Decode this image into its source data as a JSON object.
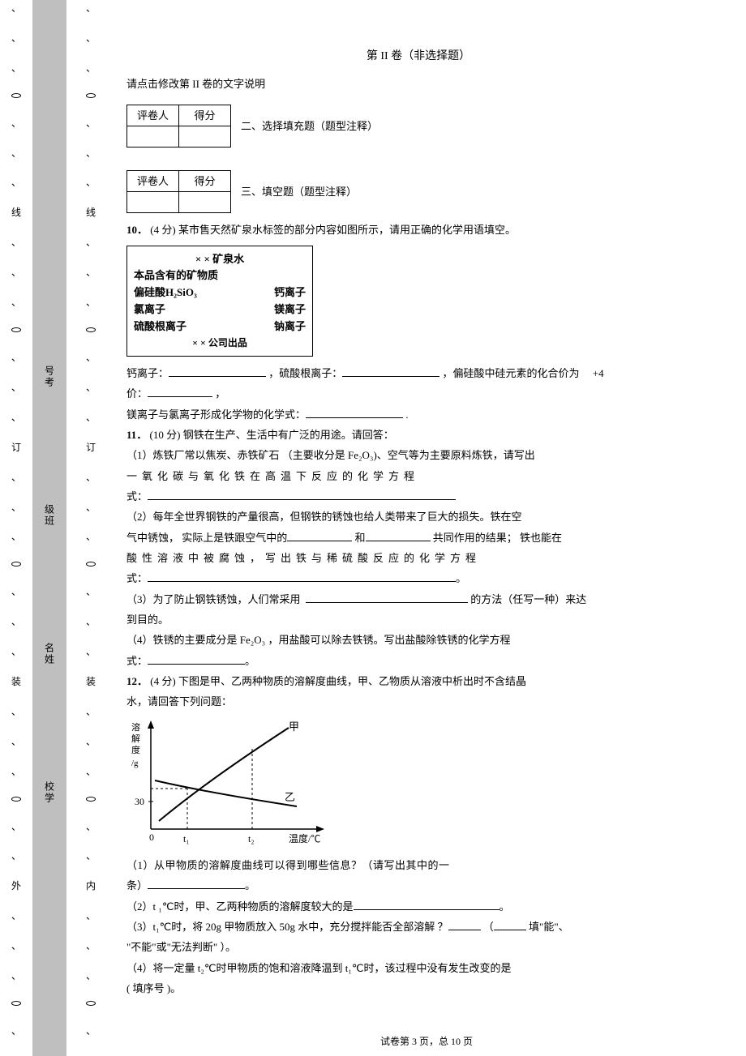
{
  "margins": {
    "outer": [
      "、",
      "、",
      "、",
      "○",
      "、",
      "、",
      "、",
      "线",
      "、",
      "、",
      "、",
      "○",
      "、",
      "、",
      "、",
      "订",
      "、",
      "、",
      "、",
      "○",
      "、",
      "、",
      "、",
      "装",
      "、",
      "、",
      "、",
      "○",
      "、",
      "、",
      "外",
      "、",
      "、",
      "、",
      "○",
      "、"
    ],
    "inner": [
      "、",
      "、",
      "、",
      "○",
      "、",
      "、",
      "、",
      "线",
      "、",
      "、",
      "、",
      "○",
      "、",
      "、",
      "、",
      "订",
      "、",
      "、",
      "、",
      "○",
      "、",
      "、",
      "、",
      "装",
      "、",
      "、",
      "、",
      "○",
      "、",
      "、",
      "内",
      "、",
      "、",
      "、",
      "○",
      "、"
    ],
    "gray_labels": [
      "号考",
      "级班",
      "名姓",
      "校学"
    ]
  },
  "header": {
    "title": "第 II 卷（非选择题）",
    "instruction": "请点击修改第 II 卷的文字说明"
  },
  "grade_table": {
    "col1": "评卷人",
    "col2": "得分"
  },
  "sec2": "二、选择填充题（题型注释）",
  "sec3": "三、填空题（题型注释）",
  "q10": {
    "num": "10．",
    "pts": "(4 分)",
    "text": "某市售天然矿泉水标签的部分内容如图所示，请用正确的化学用语填空。",
    "box": {
      "title": "× × 矿泉水",
      "sub": "本品含有的矿物质",
      "l1a": "偏硅酸H₂SiO₃",
      "l1b": "钙离子",
      "l2a": "氯离子",
      "l2b": "镁离子",
      "l3a": "硫酸根离子",
      "l3b": "钠离子",
      "footer": "× × 公司出品"
    },
    "line1a": "钙离子：",
    "line1b": "，硫酸根离子：",
    "line1c": "，偏硅酸中硅元素的化合价为",
    "line1d": "+4",
    "line2a": "价：",
    "line2b": "，",
    "line3a": "镁离子与氯离子形成化学物的化学式：",
    "line3b": "."
  },
  "q11": {
    "num": "11．",
    "pts": "(10 分)",
    "intro": "钢铁在生产、生活中有广泛的用途。请回答：",
    "p1a": "（1）炼铁厂常以焦炭、赤铁矿石  （主要收分是  Fe₂O₃)、空气等为主要原料炼铁，请写出",
    "p1b": "一氧化碳与氧化铁在高温下反应的化学方程",
    "p1c": "式：",
    "p2a": "（2）每年全世界钢铁的产量很高，但钢铁的锈蚀也给人类带来了巨大的损失。铁在空",
    "p2b": "气中锈蚀， 实际上是铁跟空气中的",
    "p2c": "和",
    "p2d": "共同作用的结果； 铁也能在",
    "p2e": "酸性溶液中被腐蚀，写出铁与稀硫酸反应的化学方程",
    "p2f": "式：",
    "p2g": "。",
    "p3a": "（3）为了防止钢铁锈蚀，人们常采用",
    "p3b": "的方法（任写一种）来达",
    "p3c": "到目的。",
    "p4a": "（4）铁锈的主要成分是    Fe₂O₃ ，用盐酸可以除去铁锈。写出盐酸除铁锈的化学方程",
    "p4b": "式：",
    "p4c": "。"
  },
  "q12": {
    "num": "12．",
    "pts": "(4 分)",
    "intro1": "下图是甲、乙两种物质的溶解度曲线，甲、乙物质从溶液中析出时不含结晶",
    "intro2": "水，请回答下列问题：",
    "chart": {
      "ylabel": "溶解度/g",
      "ytick": "30",
      "xlabel": "温度/℃",
      "xticks": [
        "t₁",
        "t₂"
      ],
      "curves": [
        "甲",
        "乙"
      ]
    },
    "p1a": "（1）从甲物质的溶解度曲线可以得到哪些信息？（请写出其中的一",
    "p1b": "条）",
    "p1c": "。",
    "p2a": "（2）t ₁℃时，甲、乙两种物质的溶解度较大的是",
    "p2b": "。",
    "p3a": "（3）t₁℃时，将  20g 甲物质放入  50g 水中，充分搅拌能否全部溶解  ？",
    "p3b": "（",
    "p3c": "填\"能\"、",
    "p3d": "\"不能\"或\"无法判断\"  ）。",
    "p4a": "（4）将一定量   t₂℃时甲物质的饱和溶液降温到    t₁℃时，该过程中没有发生改变的是",
    "p4b": "( 填序号 )。"
  },
  "footer": {
    "text": "试卷第 3 页，总 10 页"
  }
}
